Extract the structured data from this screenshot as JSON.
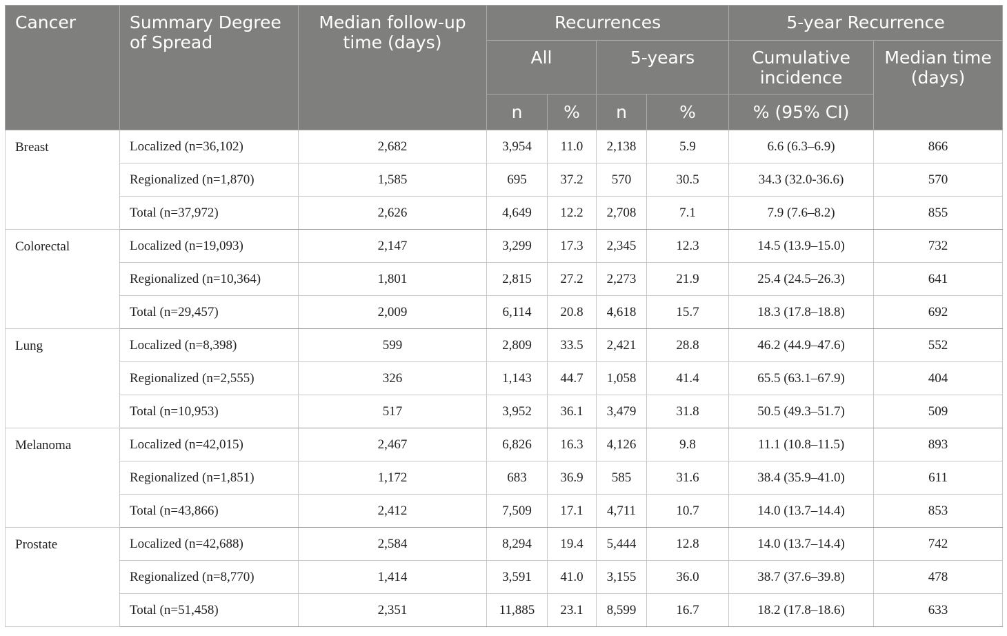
{
  "header": {
    "cancer": "Cancer",
    "spread": "Summary Degree of Spread",
    "followup": "Median follow-up time (days)",
    "recurrences": "Recurrences",
    "five_year_recurrence": "5-year Recurrence",
    "all": "All",
    "five_years": "5-years",
    "cumulative_incidence": "Cumulative incidence",
    "median_time": "Median time (days)",
    "n1": "n",
    "pct1": "%",
    "n2": "n",
    "pct2": "%",
    "ci": "% (95% CI)"
  },
  "groups": [
    {
      "cancer": "Breast",
      "rows": [
        {
          "spread": "Localized (n=36,102)",
          "followup": "2,682",
          "all_n": "3,954",
          "all_pct": "11.0",
          "five_n": "2,138",
          "five_pct": "5.9",
          "ci": "6.6 (6.3–6.9)",
          "median": "866"
        },
        {
          "spread": "Regionalized (n=1,870)",
          "followup": "1,585",
          "all_n": "695",
          "all_pct": "37.2",
          "five_n": "570",
          "five_pct": "30.5",
          "ci": "34.3 (32.0-36.6)",
          "median": "570"
        },
        {
          "spread": "Total (n=37,972)",
          "followup": "2,626",
          "all_n": "4,649",
          "all_pct": "12.2",
          "five_n": "2,708",
          "five_pct": "7.1",
          "ci": "7.9 (7.6–8.2)",
          "median": "855"
        }
      ]
    },
    {
      "cancer": "Colorectal",
      "rows": [
        {
          "spread": "Localized (n=19,093)",
          "followup": "2,147",
          "all_n": "3,299",
          "all_pct": "17.3",
          "five_n": "2,345",
          "five_pct": "12.3",
          "ci": "14.5 (13.9–15.0)",
          "median": "732"
        },
        {
          "spread": "Regionalized (n=10,364)",
          "followup": "1,801",
          "all_n": "2,815",
          "all_pct": "27.2",
          "five_n": "2,273",
          "five_pct": "21.9",
          "ci": "25.4 (24.5–26.3)",
          "median": "641"
        },
        {
          "spread": "Total (n=29,457)",
          "followup": "2,009",
          "all_n": "6,114",
          "all_pct": "20.8",
          "five_n": "4,618",
          "five_pct": "15.7",
          "ci": "18.3 (17.8–18.8)",
          "median": "692"
        }
      ]
    },
    {
      "cancer": "Lung",
      "rows": [
        {
          "spread": "Localized (n=8,398)",
          "followup": "599",
          "all_n": "2,809",
          "all_pct": "33.5",
          "five_n": "2,421",
          "five_pct": "28.8",
          "ci": "46.2 (44.9–47.6)",
          "median": "552"
        },
        {
          "spread": "Regionalized (n=2,555)",
          "followup": "326",
          "all_n": "1,143",
          "all_pct": "44.7",
          "five_n": "1,058",
          "five_pct": "41.4",
          "ci": "65.5 (63.1–67.9)",
          "median": "404"
        },
        {
          "spread": "Total (n=10,953)",
          "followup": "517",
          "all_n": "3,952",
          "all_pct": "36.1",
          "five_n": "3,479",
          "five_pct": "31.8",
          "ci": "50.5 (49.3–51.7)",
          "median": "509"
        }
      ]
    },
    {
      "cancer": "Melanoma",
      "rows": [
        {
          "spread": "Localized (n=42,015)",
          "followup": "2,467",
          "all_n": "6,826",
          "all_pct": "16.3",
          "five_n": "4,126",
          "five_pct": "9.8",
          "ci": "11.1 (10.8–11.5)",
          "median": "893"
        },
        {
          "spread": "Regionalized (n=1,851)",
          "followup": "1,172",
          "all_n": "683",
          "all_pct": "36.9",
          "five_n": "585",
          "five_pct": "31.6",
          "ci": "38.4 (35.9–41.0)",
          "median": "611"
        },
        {
          "spread": "Total (n=43,866)",
          "followup": "2,412",
          "all_n": "7,509",
          "all_pct": "17.1",
          "five_n": "4,711",
          "five_pct": "10.7",
          "ci": "14.0 (13.7–14.4)",
          "median": "853"
        }
      ]
    },
    {
      "cancer": "Prostate",
      "rows": [
        {
          "spread": "Localized (n=42,688)",
          "followup": "2,584",
          "all_n": "8,294",
          "all_pct": "19.4",
          "five_n": "5,444",
          "five_pct": "12.8",
          "ci": "14.0 (13.7–14.4)",
          "median": "742"
        },
        {
          "spread": "Regionalized (n=8,770)",
          "followup": "1,414",
          "all_n": "3,591",
          "all_pct": "41.0",
          "five_n": "3,155",
          "five_pct": "36.0",
          "ci": "38.7 (37.6–39.8)",
          "median": "478"
        },
        {
          "spread": "Total (n=51,458)",
          "followup": "2,351",
          "all_n": "11,885",
          "all_pct": "23.1",
          "five_n": "8,599",
          "five_pct": "16.7",
          "ci": "18.2 (17.8–18.6)",
          "median": "633"
        }
      ]
    }
  ]
}
